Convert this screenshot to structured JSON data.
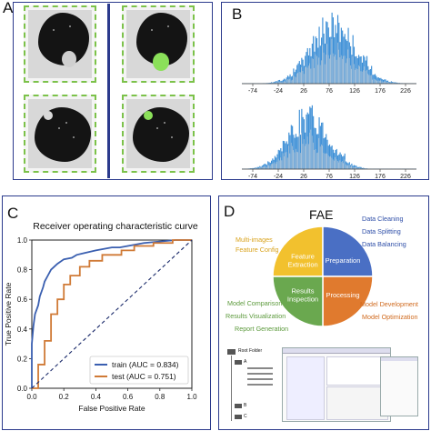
{
  "panels": {
    "a": {
      "letter": "A"
    },
    "b": {
      "letter": "B",
      "hist_top_ticks": [
        "-74",
        "-24",
        "26",
        "76",
        "126",
        "176",
        "226"
      ],
      "hist_bottom_ticks": [
        "-74",
        "-24",
        "26",
        "76",
        "126",
        "176",
        "226"
      ]
    },
    "c": {
      "letter": "C"
    },
    "d": {
      "letter": "D"
    }
  },
  "chart_data": [
    {
      "type": "line",
      "title": "Receiver operating characteristic curve",
      "xlabel": "False Positive Rate",
      "ylabel": "True Positive Rate",
      "xlim": [
        0,
        1.0
      ],
      "ylim": [
        0,
        1.0
      ],
      "xticks": [
        "0.0",
        "0.2",
        "0.4",
        "0.6",
        "0.8",
        "1.0"
      ],
      "yticks": [
        "0.0",
        "0.2",
        "0.4",
        "0.6",
        "0.8",
        "1.0"
      ],
      "legend_position": "bottom-right",
      "series": [
        {
          "name": "train (AUC = 0.834)",
          "color": "#3a5fb0",
          "x": [
            0,
            0,
            0.01,
            0.02,
            0.04,
            0.05,
            0.07,
            0.08,
            0.1,
            0.12,
            0.14,
            0.16,
            0.2,
            0.25,
            0.28,
            0.32,
            0.36,
            0.4,
            0.45,
            0.5,
            0.55,
            0.6,
            0.7,
            0.8,
            0.9,
            1.0
          ],
          "y": [
            0,
            0.3,
            0.42,
            0.5,
            0.56,
            0.62,
            0.68,
            0.72,
            0.76,
            0.8,
            0.82,
            0.84,
            0.87,
            0.88,
            0.9,
            0.91,
            0.92,
            0.93,
            0.94,
            0.95,
            0.95,
            0.96,
            0.98,
            0.99,
            1.0,
            1.0
          ]
        },
        {
          "name": "test (AUC = 0.751)",
          "color": "#d07a36",
          "x": [
            0,
            0.04,
            0.04,
            0.08,
            0.08,
            0.12,
            0.12,
            0.16,
            0.16,
            0.2,
            0.2,
            0.24,
            0.24,
            0.3,
            0.3,
            0.36,
            0.36,
            0.44,
            0.44,
            0.56,
            0.56,
            0.64,
            0.64,
            0.76,
            0.76,
            0.88,
            0.88,
            1.0
          ],
          "y": [
            0,
            0,
            0.16,
            0.16,
            0.32,
            0.32,
            0.5,
            0.5,
            0.6,
            0.6,
            0.7,
            0.7,
            0.76,
            0.76,
            0.82,
            0.82,
            0.86,
            0.86,
            0.9,
            0.9,
            0.93,
            0.93,
            0.96,
            0.96,
            0.98,
            0.98,
            1.0,
            1.0
          ]
        },
        {
          "name": "",
          "color": "#1a2a6a",
          "dashed": true,
          "x": [
            0,
            1
          ],
          "y": [
            0,
            1
          ]
        }
      ]
    },
    {
      "type": "pie",
      "title": "FAE",
      "slices": [
        {
          "label": "Feature Extraction",
          "value": 25,
          "color": "#f2c12e"
        },
        {
          "label": "Preparation",
          "value": 25,
          "color": "#4a6fc4"
        },
        {
          "label": "Processing",
          "value": 25,
          "color": "#e07a2e"
        },
        {
          "label": "Results Inspection",
          "value": 25,
          "color": "#6aa84f"
        }
      ]
    }
  ],
  "fae": {
    "left_yellow": [
      "Multi-images",
      "Feature Config"
    ],
    "right_blue": [
      "Data Cleaning",
      "Data Splitting",
      "Data Balancing"
    ],
    "left_green": [
      "Model Comparison",
      "Results Visualization",
      "Report Generation"
    ],
    "right_orange": [
      "Model Development",
      "Model Optimization"
    ],
    "colors": {
      "yellow": "#d9a21b",
      "blue": "#2f4fa8",
      "green": "#5c9a3c",
      "orange": "#d06a1e"
    }
  },
  "folder_tree": {
    "root": "Root Folder",
    "a": "A",
    "b": "B",
    "c": "C"
  }
}
